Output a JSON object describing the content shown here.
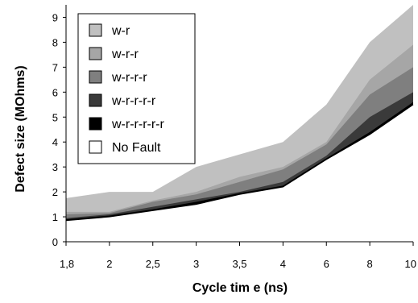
{
  "chart_data": {
    "type": "area",
    "xlabel": "Cycle tim e (ns)",
    "ylabel": "Defect size (MOhms)",
    "categories": [
      "1,8",
      "2",
      "2,5",
      "3",
      "3,5",
      "4",
      "6",
      "8",
      "10"
    ],
    "ylim": [
      0,
      9.5
    ],
    "yticks": [
      "0",
      "1",
      "2",
      "3",
      "4",
      "5",
      "6",
      "7",
      "8",
      "9"
    ],
    "legend_position": "top-left",
    "series": [
      {
        "name": "No Fault",
        "color": "#ffffff",
        "values": [
          0.85,
          1.0,
          1.25,
          1.5,
          1.9,
          2.2,
          3.3,
          4.3,
          5.5
        ]
      },
      {
        "name": "w-r-r-r-r-r",
        "color": "#000000",
        "values": [
          0.9,
          1.05,
          1.3,
          1.6,
          1.95,
          2.25,
          3.35,
          4.4,
          5.6
        ]
      },
      {
        "name": "w-r-r-r-r",
        "color": "#3a3a3a",
        "values": [
          0.95,
          1.1,
          1.4,
          1.7,
          2.0,
          2.4,
          3.45,
          5.0,
          6.0
        ]
      },
      {
        "name": "w-r-r-r",
        "color": "#7f7f7f",
        "values": [
          1.1,
          1.15,
          1.6,
          1.9,
          2.4,
          2.9,
          3.9,
          5.9,
          7.0
        ]
      },
      {
        "name": "w-r-r",
        "color": "#a6a6a6",
        "values": [
          1.2,
          1.2,
          1.65,
          2.0,
          2.6,
          3.0,
          4.0,
          6.5,
          7.9
        ]
      },
      {
        "name": "w-r",
        "color": "#c0c0c0",
        "values": [
          1.75,
          2.0,
          2.0,
          3.0,
          3.5,
          4.0,
          5.5,
          8.0,
          9.5
        ]
      }
    ],
    "legend": [
      {
        "label": "w-r",
        "color": "#c0c0c0"
      },
      {
        "label": "w-r-r",
        "color": "#a6a6a6"
      },
      {
        "label": "w-r-r-r",
        "color": "#7f7f7f"
      },
      {
        "label": "w-r-r-r-r",
        "color": "#3a3a3a"
      },
      {
        "label": "w-r-r-r-r-r",
        "color": "#000000"
      },
      {
        "label": "No Fault",
        "color": "#ffffff"
      }
    ]
  }
}
